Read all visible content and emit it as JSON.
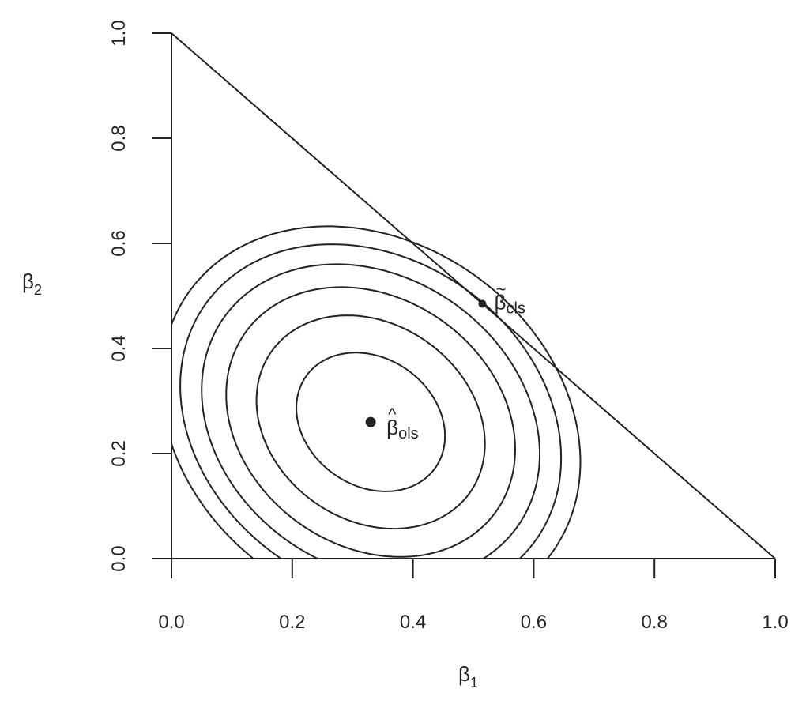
{
  "chart_data": {
    "type": "contour",
    "xlabel": "β",
    "xlabel_sub": "1",
    "ylabel": "β",
    "ylabel_sub": "2",
    "xlim": [
      0,
      1
    ],
    "ylim": [
      0,
      1
    ],
    "xticks": [
      "0.0",
      "0.2",
      "0.4",
      "0.6",
      "0.8",
      "1.0"
    ],
    "yticks": [
      "0.0",
      "0.2",
      "0.4",
      "0.6",
      "0.8",
      "1.0"
    ],
    "grid": false,
    "constraint_line": {
      "from": [
        0,
        1
      ],
      "to": [
        1,
        0
      ]
    },
    "contours": {
      "center": [
        0.33,
        0.26
      ],
      "covariance": [
        [
          0.0918,
          -0.02
        ],
        [
          -0.02,
          0.1056
        ]
      ],
      "levels": [
        0.165,
        0.39,
        0.624,
        0.854,
        1.084,
        1.314
      ]
    },
    "points": [
      {
        "name": "ols",
        "symbol": "β",
        "accent": "^",
        "sub": "ols",
        "x": 0.33,
        "y": 0.26
      },
      {
        "name": "cls",
        "symbol": "β",
        "accent": "~",
        "sub": "cls",
        "x": 0.515,
        "y": 0.485
      }
    ],
    "color": "#222222"
  }
}
